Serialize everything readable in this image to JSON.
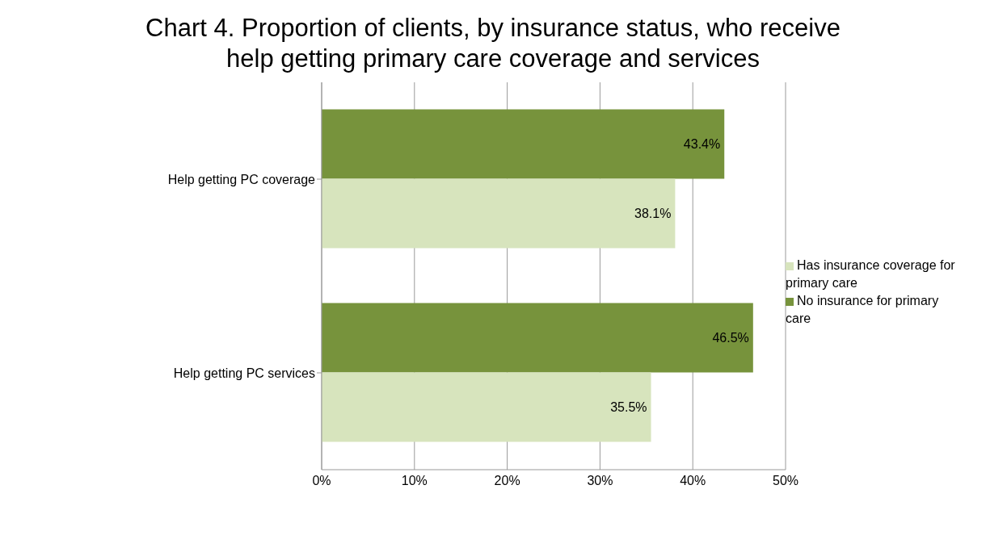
{
  "chart_data": {
    "type": "bar",
    "orientation": "horizontal",
    "title": "Chart 4. Proportion of clients, by insurance status, who receive help getting primary care coverage and services",
    "categories": [
      "Help getting PC coverage",
      "Help getting PC services"
    ],
    "series": [
      {
        "name": "No insurance for primary care",
        "color": "#77933c",
        "values": [
          43.4,
          46.5
        ],
        "value_labels": [
          "43.4%",
          "46.5%"
        ]
      },
      {
        "name": "Has insurance coverage for primary care",
        "color": "#d7e4bd",
        "values": [
          38.1,
          35.5
        ],
        "value_labels": [
          "38.1%",
          "35.5%"
        ]
      }
    ],
    "xlim": [
      0,
      50
    ],
    "xticks": [
      {
        "value": 0,
        "label": "0%"
      },
      {
        "value": 10,
        "label": "10%"
      },
      {
        "value": 20,
        "label": "20%"
      },
      {
        "value": 30,
        "label": "30%"
      },
      {
        "value": 40,
        "label": "40%"
      },
      {
        "value": 50,
        "label": "50%"
      }
    ],
    "grid": "x",
    "legend": "right"
  }
}
